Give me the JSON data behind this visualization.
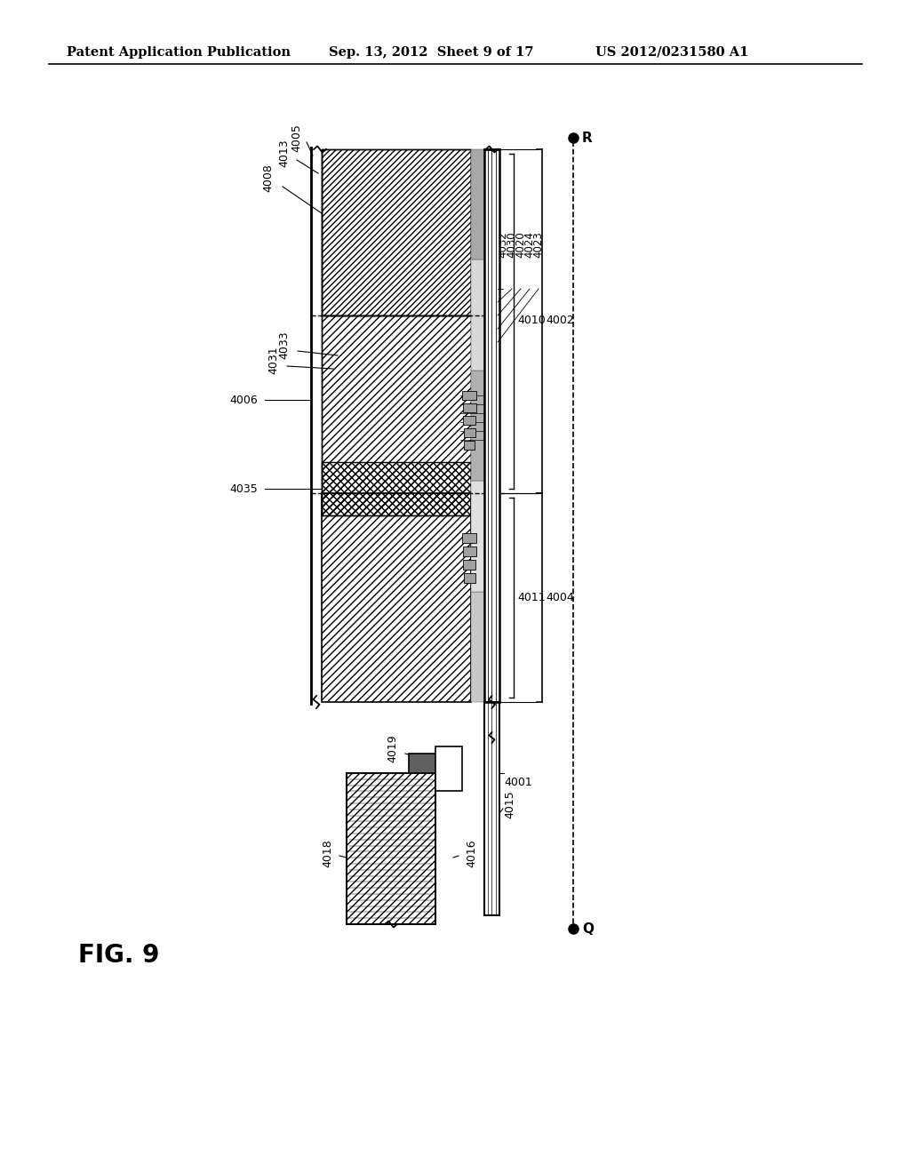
{
  "title_left": "Patent Application Publication",
  "title_mid": "Sep. 13, 2012  Sheet 9 of 17",
  "title_right": "US 2012/0231580 A1",
  "fig_label": "FIG. 9",
  "background_color": "#ffffff"
}
